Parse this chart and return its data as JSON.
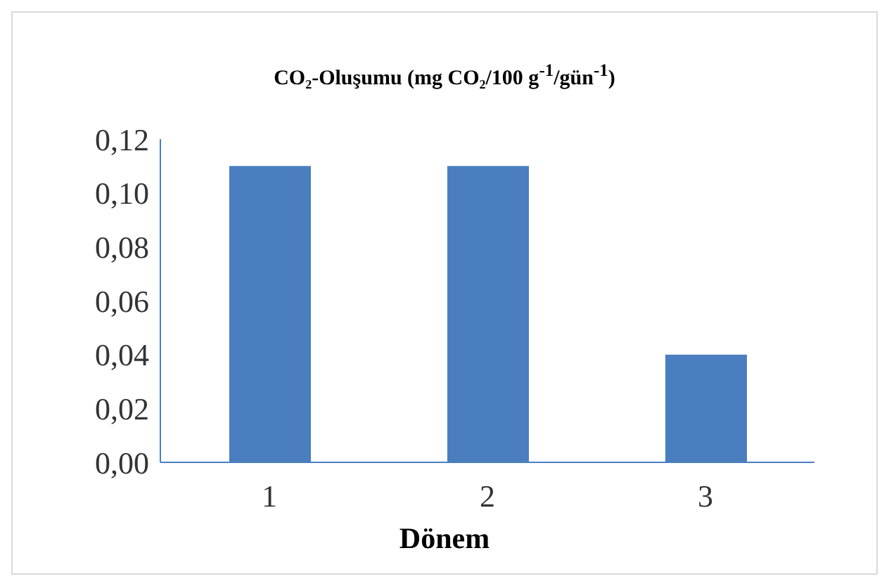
{
  "chart_data": {
    "type": "bar",
    "title": "CO₂-Oluşumu (mg CO₂/100 g$^{-1}$/gün$^{-1}$)",
    "xlabel": "Dönem",
    "categories": [
      "1",
      "2",
      "3"
    ],
    "values": [
      0.11,
      0.11,
      0.04
    ],
    "color": "#4a7ebf",
    "ylim": [
      0,
      0.12
    ],
    "yticks": [
      {
        "value": 0,
        "label": "0,00"
      },
      {
        "value": 0.02,
        "label": "0,02"
      },
      {
        "value": 0.04,
        "label": "0,04"
      },
      {
        "value": 0.06,
        "label": "0,06"
      },
      {
        "value": 0.08,
        "label": "0,08"
      },
      {
        "value": 0.1,
        "label": "0,10"
      },
      {
        "value": 0.12,
        "label": "0,12"
      }
    ],
    "grid": false,
    "legend": false
  }
}
